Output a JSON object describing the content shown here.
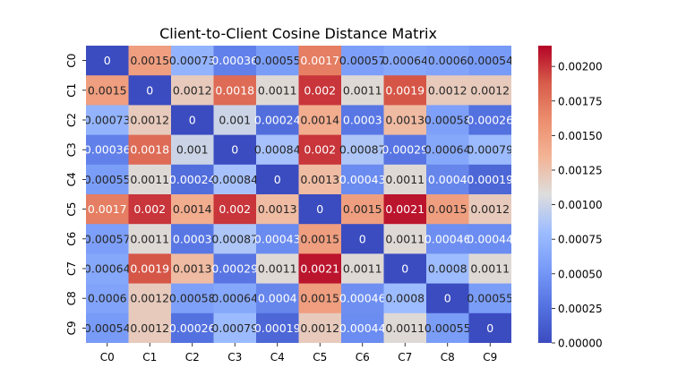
{
  "chart_data": {
    "type": "heatmap",
    "title": "Client-to-Client Cosine Distance Matrix",
    "xlabel": "",
    "ylabel": "",
    "rows": [
      "C0",
      "C1",
      "C2",
      "C3",
      "C4",
      "C5",
      "C6",
      "C7",
      "C8",
      "C9"
    ],
    "columns": [
      "C0",
      "C1",
      "C2",
      "C3",
      "C4",
      "C5",
      "C6",
      "C7",
      "C8",
      "C9"
    ],
    "values": [
      [
        0,
        0.0015,
        0.00073,
        0.00036,
        0.00055,
        0.0017,
        0.00057,
        0.00064,
        0.0006,
        0.00054
      ],
      [
        0.0015,
        0,
        0.0012,
        0.0018,
        0.0011,
        0.002,
        0.0011,
        0.0019,
        0.0012,
        0.0012
      ],
      [
        0.00073,
        0.0012,
        0,
        0.001,
        0.00024,
        0.0014,
        0.0003,
        0.0013,
        0.00058,
        0.00026
      ],
      [
        0.00036,
        0.0018,
        0.001,
        0,
        0.00084,
        0.002,
        0.00087,
        0.00029,
        0.00064,
        0.00079
      ],
      [
        0.00055,
        0.0011,
        0.00024,
        0.00084,
        0,
        0.0013,
        0.00043,
        0.0011,
        0.0004,
        0.00019
      ],
      [
        0.0017,
        0.002,
        0.0014,
        0.002,
        0.0013,
        0,
        0.0015,
        0.0021,
        0.0015,
        0.0012
      ],
      [
        0.00057,
        0.0011,
        0.0003,
        0.00087,
        0.00043,
        0.0015,
        0,
        0.0011,
        0.00046,
        0.00044
      ],
      [
        0.00064,
        0.0019,
        0.0013,
        0.00029,
        0.0011,
        0.0021,
        0.0011,
        0,
        0.0008,
        0.0011
      ],
      [
        0.0006,
        0.0012,
        0.00058,
        0.00064,
        0.0004,
        0.0015,
        0.00046,
        0.0008,
        0,
        0.00055
      ],
      [
        0.00054,
        0.0012,
        0.00026,
        0.00079,
        0.00019,
        0.0012,
        0.00044,
        0.0011,
        0.00055,
        0
      ]
    ],
    "cell_labels": [
      [
        "0",
        "0.0015",
        "0.00073",
        "0.00036",
        "0.00055",
        "0.0017",
        "0.00057",
        "0.00064",
        "0.0006",
        "0.00054"
      ],
      [
        "0.0015",
        "0",
        "0.0012",
        "0.0018",
        "0.0011",
        "0.002",
        "0.0011",
        "0.0019",
        "0.0012",
        "0.0012"
      ],
      [
        "0.00073",
        "0.0012",
        "0",
        "0.001",
        "0.00024",
        "0.0014",
        "0.0003",
        "0.0013",
        "0.00058",
        "0.00026"
      ],
      [
        "0.00036",
        "0.0018",
        "0.001",
        "0",
        "0.00084",
        "0.002",
        "0.00087",
        "0.00029",
        "0.00064",
        "0.00079"
      ],
      [
        "0.00055",
        "0.0011",
        "0.00024",
        "0.00084",
        "0",
        "0.0013",
        "0.00043",
        "0.0011",
        "0.0004",
        "0.00019"
      ],
      [
        "0.0017",
        "0.002",
        "0.0014",
        "0.002",
        "0.0013",
        "0",
        "0.0015",
        "0.0021",
        "0.0015",
        "0.0012"
      ],
      [
        "0.00057",
        "0.0011",
        "0.0003",
        "0.00087",
        "0.00043",
        "0.0015",
        "0",
        "0.0011",
        "0.00046",
        "0.00044"
      ],
      [
        "0.00064",
        "0.0019",
        "0.0013",
        "0.00029",
        "0.0011",
        "0.0021",
        "0.0011",
        "0",
        "0.0008",
        "0.0011"
      ],
      [
        "0.0006",
        "0.0012",
        "0.00058",
        "0.00064",
        "0.0004",
        "0.0015",
        "0.00046",
        "0.0008",
        "0",
        "0.00055"
      ],
      [
        "0.00054",
        "0.0012",
        "0.00026",
        "0.00079",
        "0.00019",
        "0.0012",
        "0.00044",
        "0.0011",
        "0.00055",
        "0"
      ]
    ],
    "colormap": "coolwarm",
    "colorbar": {
      "range": [
        0,
        0.00215
      ],
      "ticks": [
        0,
        0.00025,
        0.0005,
        0.00075,
        0.001,
        0.00125,
        0.0015,
        0.00175,
        0.002
      ],
      "tick_labels": [
        "0.00000",
        "0.00025",
        "0.00050",
        "0.00075",
        "0.00100",
        "0.00125",
        "0.00150",
        "0.00175",
        "0.00200"
      ]
    },
    "grid": false,
    "legend": "colorbar-right"
  }
}
